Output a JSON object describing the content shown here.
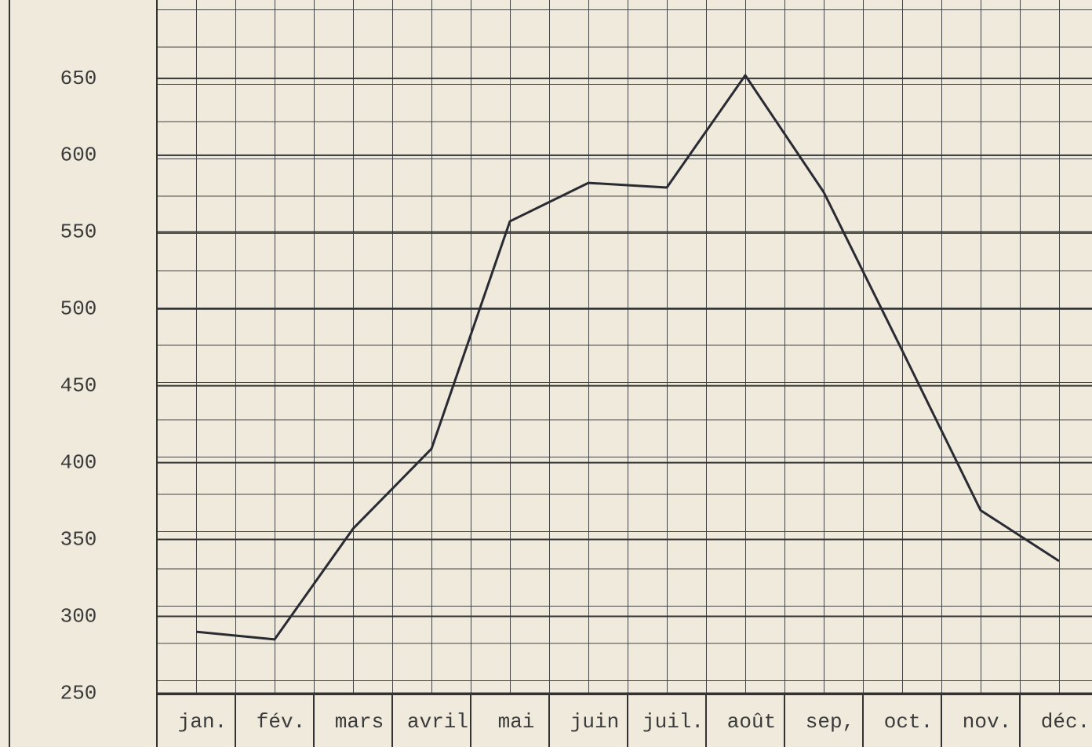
{
  "chart_data": {
    "type": "line",
    "categories": [
      "jan.",
      "fév.",
      "mars",
      "avril",
      "mai",
      "juin",
      "juil.",
      "août",
      "sep,",
      "oct.",
      "nov.",
      "déc."
    ],
    "values": [
      290,
      285,
      357,
      409,
      557,
      582,
      579,
      652,
      576,
      473,
      369,
      336
    ],
    "color": "#2a2a33",
    "ylim": [
      215,
      701
    ],
    "yticks": [
      250,
      300,
      350,
      400,
      450,
      500,
      550,
      600,
      650
    ],
    "grid": true
  }
}
